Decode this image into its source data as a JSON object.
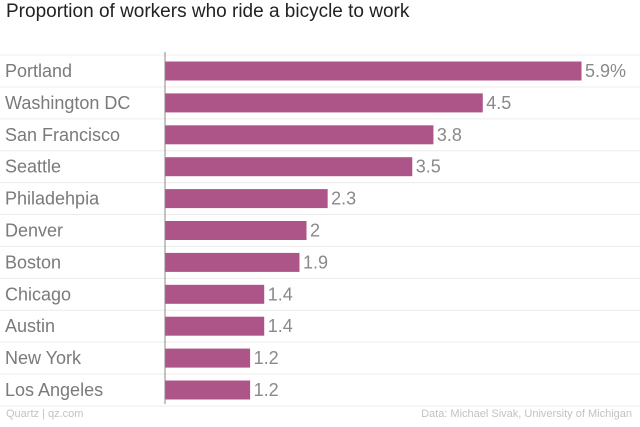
{
  "title": "Proportion of workers who ride a bicycle to work",
  "footer": {
    "source_left": "Quartz | qz.com",
    "source_right": "Data: Michael Sivak, University of Michigan"
  },
  "colors": {
    "bar": "#ad5588",
    "gridline": "#ececec",
    "axis": "#888888",
    "category_label": "#7a7a7a",
    "value_label": "#8a8a8a"
  },
  "chart_data": {
    "type": "bar",
    "orientation": "horizontal",
    "title": "Proportion of workers who ride a bicycle to work",
    "categories": [
      "Portland",
      "Washington DC",
      "San Francisco",
      "Seattle",
      "Philadehpia",
      "Denver",
      "Boston",
      "Chicago",
      "Austin",
      "New York",
      "Los Angeles"
    ],
    "values": [
      5.9,
      4.5,
      3.8,
      3.5,
      2.3,
      2,
      1.9,
      1.4,
      1.4,
      1.2,
      1.2
    ],
    "value_labels": [
      "5.9%",
      "4.5",
      "3.8",
      "3.5",
      "2.3",
      "2",
      "1.9",
      "1.4",
      "1.4",
      "1.2",
      "1.2"
    ],
    "unit": "%",
    "xlim": [
      0,
      5.9
    ],
    "xlabel": "",
    "ylabel": "",
    "grid": true,
    "legend": "none"
  }
}
